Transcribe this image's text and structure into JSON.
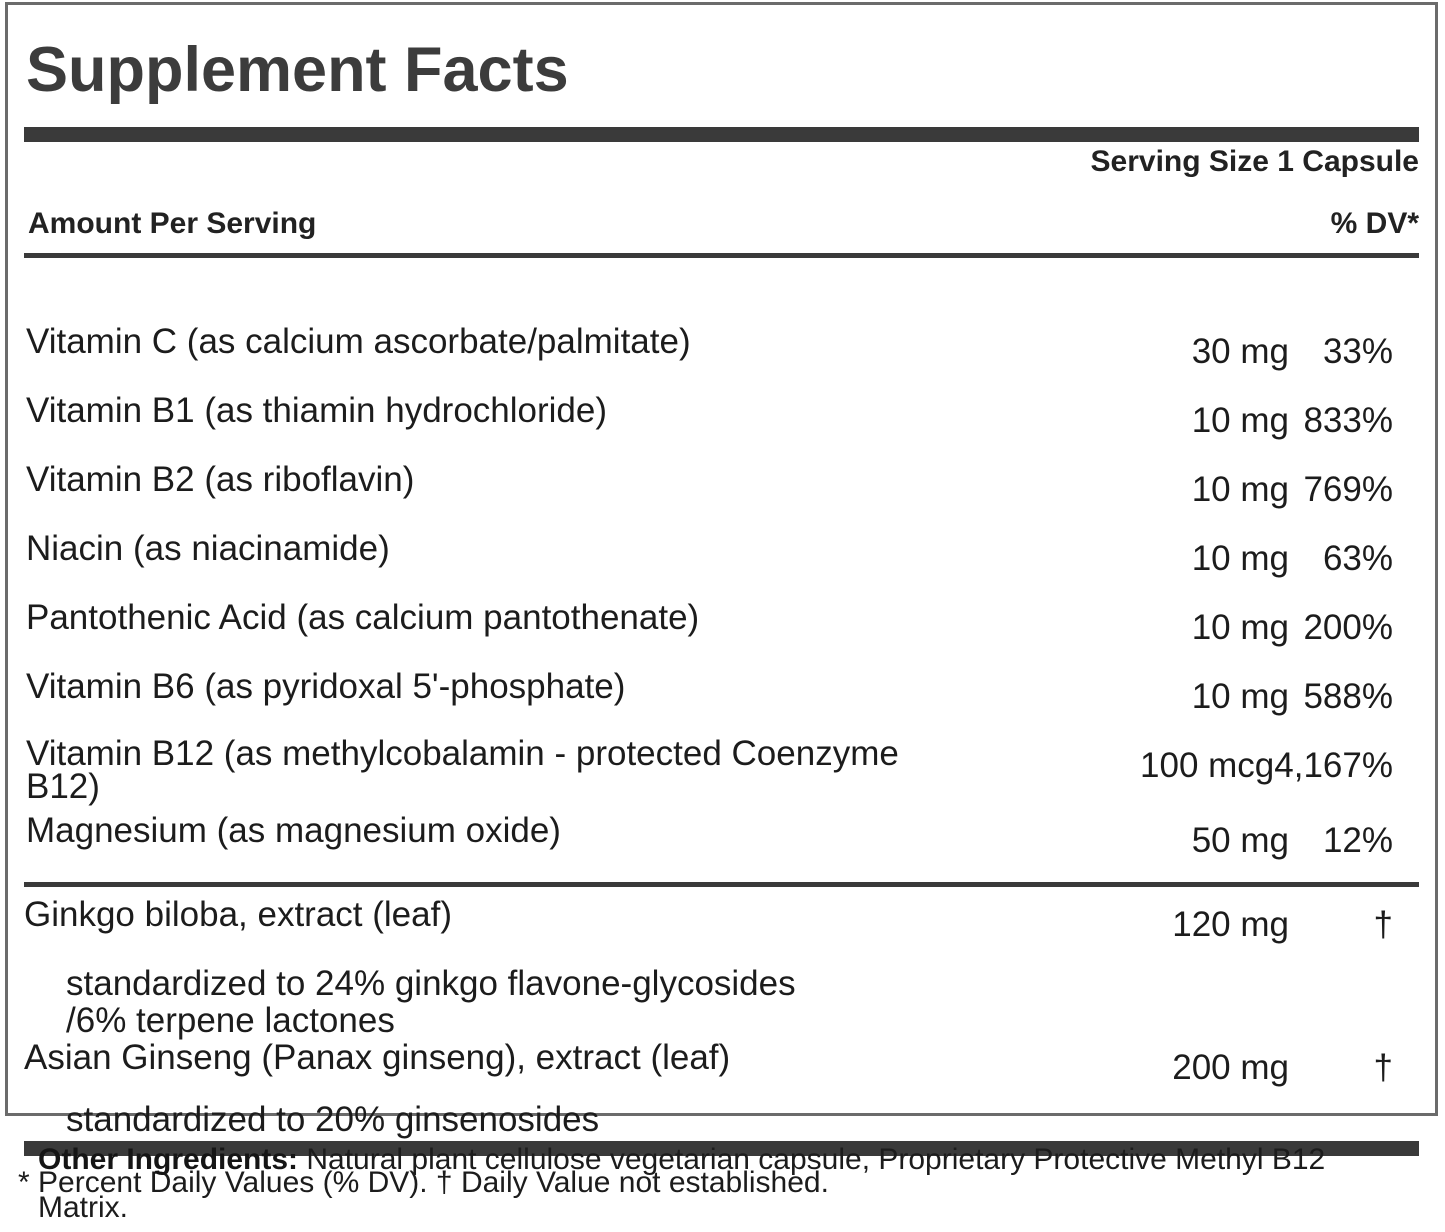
{
  "panel": {
    "title": "Supplement Facts",
    "serving_size": "Serving Size 1 Capsule",
    "amount_header": "Amount Per Serving",
    "dv_header": "% DV*",
    "rows": [
      {
        "label": "Vitamin C (as calcium ascorbate/palmitate)",
        "amount": "30 mg",
        "dv": "33%"
      },
      {
        "label": "Vitamin B1 (as thiamin hydrochloride)",
        "amount": "10 mg",
        "dv": "833%"
      },
      {
        "label": "Vitamin B2 (as riboflavin)",
        "amount": "10 mg",
        "dv": "769%"
      },
      {
        "label": "Niacin (as niacinamide)",
        "amount": "10 mg",
        "dv": "63%"
      },
      {
        "label": "Pantothenic Acid (as calcium pantothenate)",
        "amount": "10 mg",
        "dv": "200%"
      },
      {
        "label": "Vitamin B6 (as pyridoxal 5'-phosphate)",
        "amount": "10 mg",
        "dv": "588%"
      },
      {
        "label": "Vitamin B12 (as methylcobalamin - protected Coenzyme B12)",
        "amount": "100 mcg",
        "dv": "4,167%"
      },
      {
        "label": "Magnesium (as magnesium oxide)",
        "amount": "50 mg",
        "dv": "12%"
      }
    ],
    "botanicals": [
      {
        "label": "Ginkgo biloba, extract (leaf)",
        "amount": "120 mg",
        "dv": "†",
        "sub_lines": [
          "standardized to 24% ginkgo flavone-glycosides",
          "/6% terpene lactones"
        ]
      },
      {
        "label": "Asian Ginseng (Panax ginseng), extract (leaf)",
        "amount": "200 mg",
        "dv": "†",
        "sub_lines": [
          "standardized to 20% ginsenosides"
        ]
      }
    ],
    "footnote": "* Percent Daily Values (% DV). † Daily Value not established."
  },
  "other_ingredients": {
    "label": "Other Ingredients:",
    "text": " Natural plant cellulose vegetarian capsule, Proprietary Protective Methyl B12 Matrix."
  },
  "colors": {
    "text": "#1c1c1c",
    "title": "#3c3c3c",
    "bar": "#3a3a3a",
    "border": "#6b6b6b",
    "background": "#ffffff"
  }
}
